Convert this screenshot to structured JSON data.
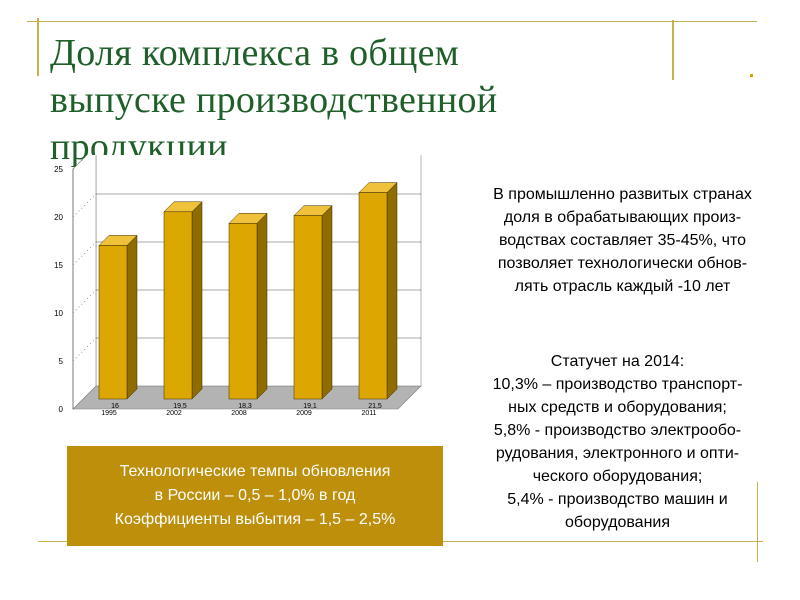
{
  "slide": {
    "title_lines": [
      "Доля комплекса в общем",
      "выпуске производственной",
      "продукции"
    ],
    "right_top_lines": [
      "В промышленно развитых странах",
      "доля в обрабатывающих произ-",
      "водствах составляет 35-45%, что",
      "позволяет технологически обнов-",
      "лять отрасль каждый -10 лет"
    ],
    "right_bottom_lines": [
      "Статучет на 2014:",
      "10,3% – производство транспорт-",
      "ных средств и оборудования;",
      "5,8% - производство электрообо-",
      "рудования, электронного и опти-",
      "ческого оборудования;",
      "5,4% - производство машин и",
      "оборудования"
    ],
    "box_lines": [
      "Технологические темпы обновления",
      "в России – 0,5 – 1,0% в год",
      "Коэффициенты выбытия – 1,5 – 2,5%"
    ],
    "colors": {
      "title": "#1f5f2a",
      "accent": "#c9b04a",
      "bar": "#dca700",
      "box": "#bd8f0b"
    }
  },
  "chart_data": {
    "type": "bar",
    "categories": [
      "1995",
      "2002",
      "2008",
      "2009",
      "2011"
    ],
    "values": [
      16,
      19.5,
      18.3,
      19.1,
      21.5
    ],
    "data_labels": [
      "16",
      "19,5",
      "18,3",
      "19,1",
      "21,5"
    ],
    "ylim": [
      0,
      25
    ],
    "yticks": [
      0,
      5,
      10,
      15,
      20,
      25
    ],
    "title": "",
    "xlabel": "",
    "ylabel": "",
    "grid": true,
    "style": "3d"
  }
}
